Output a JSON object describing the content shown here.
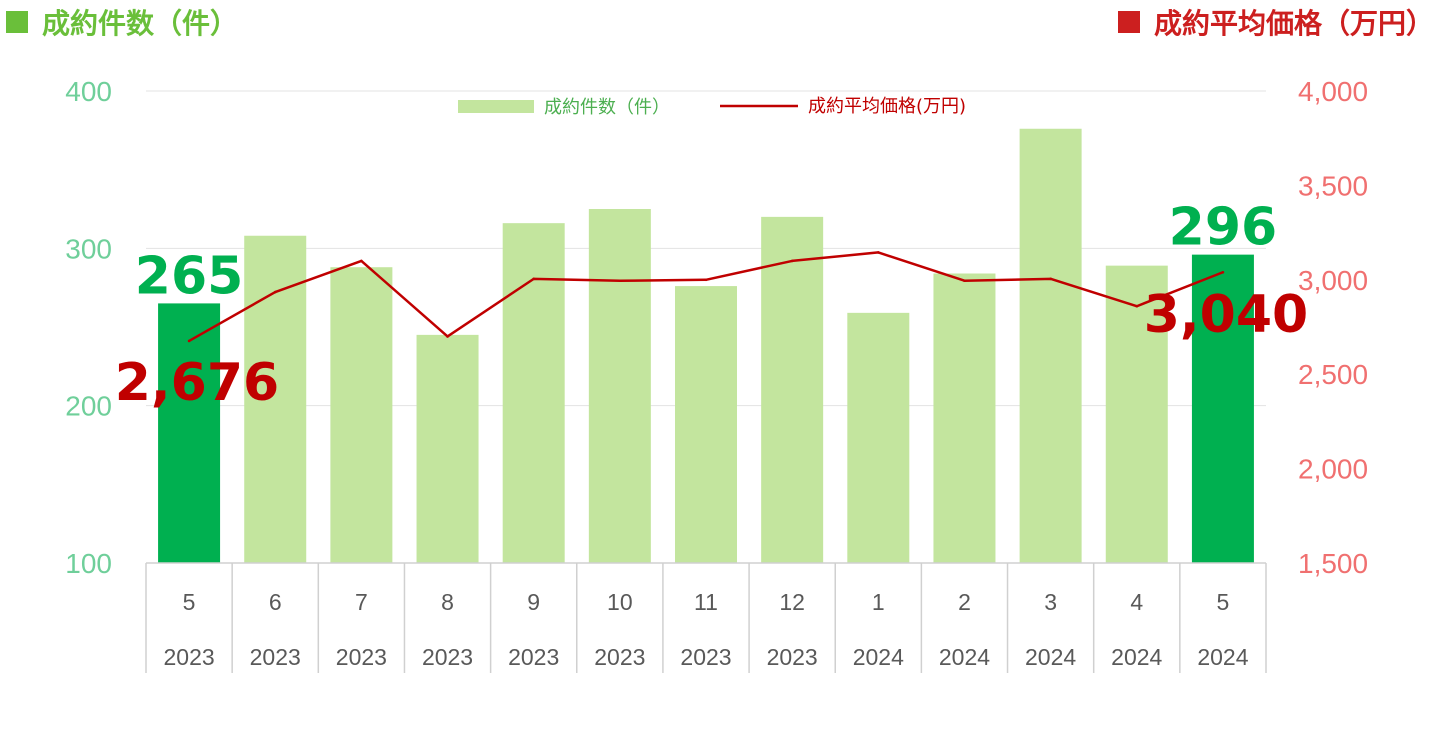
{
  "header": {
    "left_title": "成約件数（件）",
    "right_title": "成約平均価格（万円）"
  },
  "colors": {
    "bar_light": "#c3e59e",
    "bar_highlight": "#00b050",
    "line": "#c00000",
    "left_axis": "#6fcf9a",
    "right_axis": "#f07070",
    "header_left": "#6abf3a",
    "header_right": "#cc1f1f"
  },
  "chart_data": {
    "type": "bar",
    "categories": [
      {
        "month": "5",
        "year": "2023"
      },
      {
        "month": "6",
        "year": "2023"
      },
      {
        "month": "7",
        "year": "2023"
      },
      {
        "month": "8",
        "year": "2023"
      },
      {
        "month": "9",
        "year": "2023"
      },
      {
        "month": "10",
        "year": "2023"
      },
      {
        "month": "11",
        "year": "2023"
      },
      {
        "month": "12",
        "year": "2023"
      },
      {
        "month": "1",
        "year": "2024"
      },
      {
        "month": "2",
        "year": "2024"
      },
      {
        "month": "3",
        "year": "2024"
      },
      {
        "month": "4",
        "year": "2024"
      },
      {
        "month": "5",
        "year": "2024"
      }
    ],
    "series": [
      {
        "name": "成約件数（件）",
        "type": "bar",
        "axis": "left",
        "values": [
          265,
          308,
          288,
          245,
          316,
          325,
          276,
          320,
          259,
          284,
          376,
          289,
          296
        ],
        "highlight": [
          0,
          12
        ]
      },
      {
        "name": "成約平均価格(万円)",
        "type": "line",
        "axis": "right",
        "values": [
          2676,
          2935,
          3100,
          2700,
          3005,
          2995,
          3000,
          3100,
          3145,
          2995,
          3005,
          2860,
          3040
        ]
      }
    ],
    "left_axis": {
      "ylim": [
        100,
        400
      ],
      "ticks": [
        "100",
        "200",
        "300",
        "400"
      ],
      "tick_values": [
        100,
        200,
        300,
        400
      ]
    },
    "right_axis": {
      "ylim": [
        1500,
        4000
      ],
      "ticks": [
        "1,500",
        "2,000",
        "2,500",
        "3,000",
        "3,500",
        "4,000"
      ],
      "tick_values": [
        1500,
        2000,
        2500,
        3000,
        3500,
        4000
      ]
    },
    "grid": true,
    "legend_position": "top-center",
    "data_labels": [
      {
        "series": 0,
        "index": 0,
        "text": "265"
      },
      {
        "series": 0,
        "index": 12,
        "text": "296"
      },
      {
        "series": 1,
        "index": 0,
        "text": "2,676"
      },
      {
        "series": 1,
        "index": 12,
        "text": "3,040"
      }
    ]
  }
}
